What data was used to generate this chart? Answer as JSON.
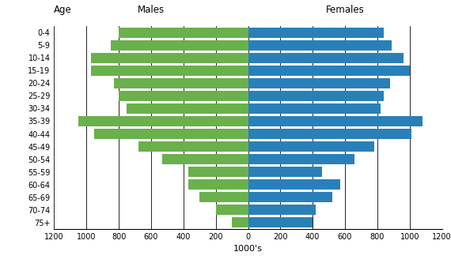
{
  "age_groups": [
    "75+",
    "70-74",
    "65-69",
    "60-64",
    "55-59",
    "50-54",
    "45-49",
    "40-44",
    "35-39",
    "30-34",
    "25-29",
    "20-24",
    "15-19",
    "10-14",
    "5-9",
    "0-4"
  ],
  "males": [
    100,
    200,
    300,
    370,
    370,
    530,
    680,
    950,
    1050,
    750,
    800,
    830,
    970,
    970,
    850,
    800
  ],
  "females": [
    400,
    420,
    520,
    570,
    460,
    660,
    780,
    1010,
    1080,
    820,
    840,
    880,
    1000,
    960,
    890,
    840
  ],
  "male_color": "#6ab04c",
  "female_color": "#2980b9",
  "background_color": "#ffffff",
  "title_males": "Males",
  "title_females": "Females",
  "xlabel": "1000's",
  "age_label": "Age",
  "xlim": 1200,
  "tick_interval": 200,
  "bar_height": 0.8,
  "spine_color": "#000000",
  "grid_color": "#000000"
}
